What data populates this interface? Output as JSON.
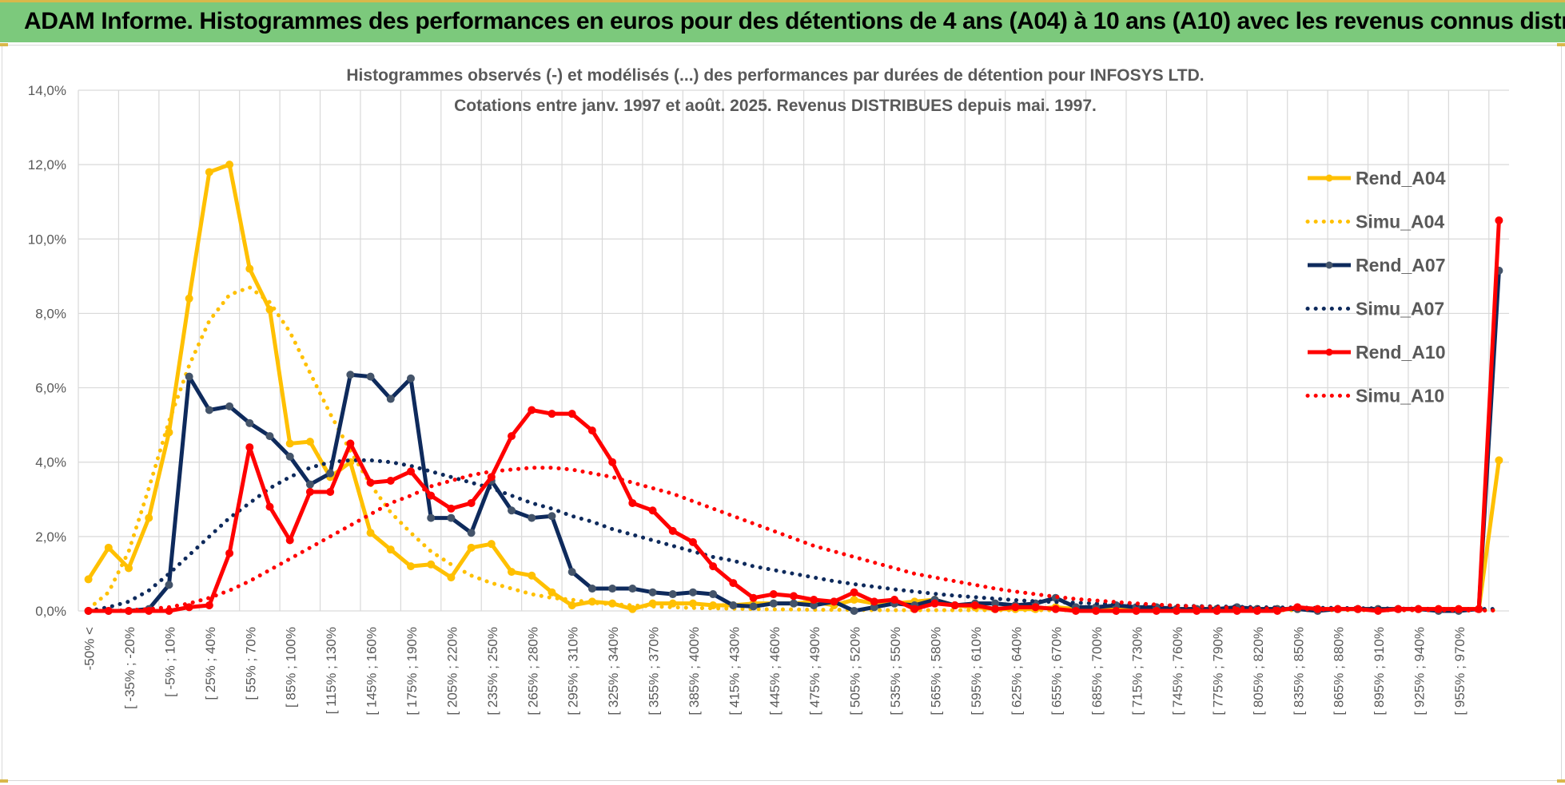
{
  "header": {
    "title": "ADAM Informe. Histogrammes des performances en euros pour des détentions de 4 ans (A04) à 10 ans (A10) avec les revenus connus distribués"
  },
  "colors": {
    "header_bg": "#7cc97c",
    "a04": "#ffc000",
    "a07": "#0e2a5c",
    "a10": "#ff0000",
    "grid": "#d9d9d9"
  },
  "chart_data": {
    "type": "line",
    "title": "Histogrammes observés (-) et modélisés (...) des performances par durées de détention pour INFOSYS LTD.",
    "subtitle": "Cotations entre janv. 1997 et août. 2025. Revenus DISTRIBUES depuis mai. 1997.",
    "ylim": [
      0,
      14
    ],
    "y_ticks": [
      "0,0%",
      "2,0%",
      "4,0%",
      "6,0%",
      "8,0%",
      "10,0%",
      "12,0%",
      "14,0%"
    ],
    "x_tick_labels": [
      "-50% <",
      "[ -35% ; -20%",
      "[ -5% ; 10%",
      "[ 25% ; 40%",
      "[ 55% ; 70%",
      "[ 85% ; 100%",
      "[ 115% ; 130%",
      "[ 145% ; 160%",
      "[ 175% ; 190%",
      "[ 205% ; 220%",
      "[ 235% ; 250%",
      "[ 265% ; 280%",
      "[ 295% ; 310%",
      "[ 325% ; 340%",
      "[ 355% ; 370%",
      "[ 385% ; 400%",
      "[ 415% ; 430%",
      "[ 445% ; 460%",
      "[ 475% ; 490%",
      "[ 505% ; 520%",
      "[ 535% ; 550%",
      "[ 565% ; 580%",
      "[ 595% ; 610%",
      "[ 625% ; 640%",
      "[ 655% ; 670%",
      "[ 685% ; 700%",
      "[ 715% ; 730%",
      "[ 745% ; 760%",
      "[ 775% ; 790%",
      "[ 805% ; 820%",
      "[ 835% ; 850%",
      "[ 865% ; 880%",
      "[ 895% ; 910%",
      "[ 925% ; 940%",
      "[ 955% ; 970%"
    ],
    "legend_position": "right",
    "grid": true,
    "series": [
      {
        "name": "Rend_A04",
        "style": "solid",
        "color": "#ffc000",
        "values": [
          0.85,
          1.7,
          1.15,
          2.5,
          4.8,
          8.4,
          11.8,
          12.0,
          9.2,
          8.1,
          4.5,
          4.55,
          3.6,
          4.0,
          2.1,
          1.65,
          1.2,
          1.25,
          0.9,
          1.7,
          1.8,
          1.05,
          0.95,
          0.5,
          0.15,
          0.25,
          0.2,
          0.05,
          0.2,
          0.2,
          0.2,
          0.15,
          0.15,
          0.2,
          0.2,
          0.2,
          0.25,
          0.15,
          0.3,
          0.2,
          0.2,
          0.25,
          0.3,
          0.15,
          0.1,
          0.05,
          0.05,
          0.05,
          0.1,
          0.05,
          0.05,
          0.05,
          0.05,
          0.05,
          0.05,
          0.05,
          0.05,
          0.05,
          0.05,
          0.05,
          0.05,
          0.05,
          0.05,
          0.05,
          0.05,
          0.05,
          0.05,
          0.05,
          0.05,
          0.05,
          4.05
        ]
      },
      {
        "name": "Simu_A04",
        "style": "dotted",
        "color": "#ffc000",
        "values": [
          0.05,
          0.5,
          1.6,
          3.3,
          5.1,
          6.6,
          7.8,
          8.5,
          8.7,
          8.3,
          7.5,
          6.4,
          5.3,
          4.3,
          3.4,
          2.65,
          2.1,
          1.6,
          1.25,
          0.95,
          0.75,
          0.6,
          0.45,
          0.35,
          0.3,
          0.22,
          0.18,
          0.15,
          0.12,
          0.1,
          0.08,
          0.07,
          0.06,
          0.05,
          0.04,
          0.04,
          0.03,
          0.03,
          0.03,
          0.02,
          0.02,
          0.02,
          0.02,
          0.02,
          0.02,
          0.02,
          0.02,
          0.02,
          0.02,
          0.02,
          0.02,
          0.02,
          0.02,
          0.02,
          0.02,
          0.02,
          0.02,
          0.02,
          0.02,
          0.02,
          0.02,
          0.02,
          0.02,
          0.02,
          0.02,
          0.02,
          0.02,
          0.02,
          0.02,
          0.02,
          0.02
        ]
      },
      {
        "name": "Rend_A07",
        "style": "solid",
        "color": "#0e2a5c",
        "values": [
          0.0,
          0.0,
          0.0,
          0.05,
          0.7,
          6.3,
          5.4,
          5.5,
          5.05,
          4.7,
          4.15,
          3.4,
          3.7,
          6.35,
          6.3,
          5.7,
          6.25,
          2.5,
          2.5,
          2.1,
          3.5,
          2.7,
          2.5,
          2.55,
          1.05,
          0.6,
          0.6,
          0.6,
          0.5,
          0.45,
          0.5,
          0.45,
          0.15,
          0.12,
          0.2,
          0.2,
          0.15,
          0.25,
          0.0,
          0.1,
          0.2,
          0.15,
          0.3,
          0.15,
          0.2,
          0.2,
          0.15,
          0.2,
          0.35,
          0.1,
          0.1,
          0.15,
          0.1,
          0.1,
          0.05,
          0.05,
          0.05,
          0.1,
          0.05,
          0.05,
          0.05,
          0.0,
          0.05,
          0.05,
          0.05,
          0.05,
          0.05,
          0.0,
          0.0,
          0.05,
          9.15
        ]
      },
      {
        "name": "Simu_A07",
        "style": "dotted",
        "color": "#0e2a5c",
        "values": [
          0.0,
          0.1,
          0.25,
          0.55,
          1.0,
          1.5,
          2.0,
          2.5,
          2.9,
          3.3,
          3.6,
          3.85,
          4.0,
          4.05,
          4.05,
          4.0,
          3.9,
          3.75,
          3.6,
          3.45,
          3.3,
          3.1,
          2.9,
          2.75,
          2.55,
          2.4,
          2.2,
          2.05,
          1.9,
          1.75,
          1.6,
          1.45,
          1.35,
          1.2,
          1.1,
          1.0,
          0.9,
          0.8,
          0.72,
          0.65,
          0.58,
          0.52,
          0.46,
          0.41,
          0.37,
          0.33,
          0.29,
          0.26,
          0.24,
          0.22,
          0.2,
          0.18,
          0.17,
          0.15,
          0.14,
          0.13,
          0.12,
          0.11,
          0.1,
          0.09,
          0.09,
          0.08,
          0.08,
          0.07,
          0.07,
          0.06,
          0.06,
          0.05,
          0.05,
          0.05,
          0.05
        ]
      },
      {
        "name": "Rend_A10",
        "style": "solid",
        "color": "#ff0000",
        "values": [
          0.0,
          0.0,
          0.0,
          0.0,
          0.0,
          0.1,
          0.15,
          1.55,
          4.4,
          2.8,
          1.9,
          3.2,
          3.2,
          4.5,
          3.45,
          3.5,
          3.75,
          3.1,
          2.75,
          2.9,
          3.6,
          4.7,
          5.4,
          5.3,
          5.3,
          4.85,
          4.0,
          2.9,
          2.7,
          2.15,
          1.85,
          1.2,
          0.75,
          0.35,
          0.45,
          0.4,
          0.3,
          0.25,
          0.5,
          0.25,
          0.3,
          0.05,
          0.2,
          0.15,
          0.15,
          0.05,
          0.1,
          0.1,
          0.05,
          0.0,
          0.0,
          0.0,
          0.0,
          0.0,
          0.0,
          0.0,
          0.0,
          0.0,
          0.0,
          0.0,
          0.1,
          0.05,
          0.05,
          0.05,
          0.0,
          0.05,
          0.05,
          0.05,
          0.05,
          0.05,
          10.5
        ]
      },
      {
        "name": "Simu_A10",
        "style": "dotted",
        "color": "#ff0000",
        "values": [
          0.0,
          0.0,
          0.02,
          0.05,
          0.1,
          0.2,
          0.35,
          0.55,
          0.8,
          1.1,
          1.4,
          1.7,
          2.0,
          2.3,
          2.6,
          2.9,
          3.1,
          3.35,
          3.5,
          3.65,
          3.75,
          3.8,
          3.85,
          3.85,
          3.8,
          3.7,
          3.6,
          3.45,
          3.3,
          3.15,
          2.95,
          2.75,
          2.55,
          2.35,
          2.15,
          1.95,
          1.75,
          1.6,
          1.45,
          1.3,
          1.15,
          1.0,
          0.9,
          0.8,
          0.7,
          0.6,
          0.52,
          0.45,
          0.38,
          0.32,
          0.28,
          0.24,
          0.2,
          0.17,
          0.14,
          0.12,
          0.1,
          0.08,
          0.07,
          0.06,
          0.05,
          0.04,
          0.03,
          0.03,
          0.02,
          0.02,
          0.02,
          0.02,
          0.01,
          0.01,
          0.01
        ]
      }
    ]
  }
}
